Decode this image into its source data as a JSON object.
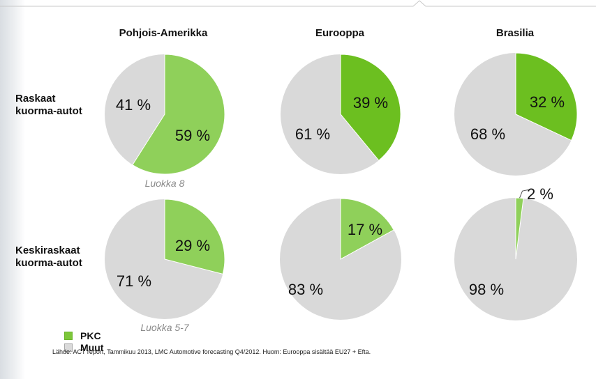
{
  "columns": [
    "Pohjois-Amerikka",
    "Eurooppa",
    "Brasilia"
  ],
  "rows": [
    {
      "label_line1": "Raskaat",
      "label_line2": "kuorma-autot"
    },
    {
      "label_line1": "Keskiraskaat",
      "label_line2": "kuorma-autot"
    }
  ],
  "sublabels": {
    "row1": "Luokka 8",
    "row2": "Luokka 5-7"
  },
  "legend": [
    {
      "label": "PKC",
      "color": "#7dc73a"
    },
    {
      "label": "Muut",
      "color": "#dadada"
    }
  ],
  "source": "Lähde: ACT report, Tammikuu 2013, LMC Automotive forecasting Q4/2012. Huom: Eurooppa sisältää EU27 + Efta.",
  "colors": {
    "pkc_light": "#8fd05a",
    "pkc_dark": "#6cbf20",
    "muut": "#d9d9d9"
  },
  "chart_data": [
    {
      "type": "pie",
      "region": "Pohjois-Amerikka",
      "segment": "Raskaat kuorma-autot",
      "labels": [
        "PKC",
        "Muut"
      ],
      "values": [
        59,
        41
      ],
      "value_labels": [
        "59 %",
        "41 %"
      ]
    },
    {
      "type": "pie",
      "region": "Eurooppa",
      "segment": "Raskaat kuorma-autot",
      "labels": [
        "PKC",
        "Muut"
      ],
      "values": [
        39,
        61
      ],
      "value_labels": [
        "39 %",
        "61 %"
      ]
    },
    {
      "type": "pie",
      "region": "Brasilia",
      "segment": "Raskaat kuorma-autot",
      "labels": [
        "PKC",
        "Muut"
      ],
      "values": [
        32,
        68
      ],
      "value_labels": [
        "32 %",
        "68 %"
      ]
    },
    {
      "type": "pie",
      "region": "Pohjois-Amerikka",
      "segment": "Keskiraskaat kuorma-autot",
      "labels": [
        "PKC",
        "Muut"
      ],
      "values": [
        29,
        71
      ],
      "value_labels": [
        "29 %",
        "71 %"
      ]
    },
    {
      "type": "pie",
      "region": "Eurooppa",
      "segment": "Keskiraskaat kuorma-autot",
      "labels": [
        "PKC",
        "Muut"
      ],
      "values": [
        17,
        83
      ],
      "value_labels": [
        "17 %",
        "83 %"
      ]
    },
    {
      "type": "pie",
      "region": "Brasilia",
      "segment": "Keskiraskaat kuorma-autot",
      "labels": [
        "PKC",
        "Muut"
      ],
      "values": [
        2,
        98
      ],
      "value_labels": [
        "2 %",
        "98 %"
      ]
    }
  ]
}
